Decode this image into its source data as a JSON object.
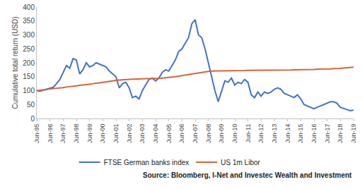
{
  "chart_data": {
    "type": "line",
    "y_label": "Cumulative total return (USD)",
    "annotations": [
      "Source: Bloomberg, I-Net and Investec Wealth and Investment"
    ],
    "categories": [
      "Jun-95",
      null,
      null,
      null,
      "Jun-96",
      null,
      null,
      null,
      "Jun-97",
      null,
      null,
      null,
      "Jun-98",
      null,
      null,
      null,
      "Jun-99",
      null,
      null,
      null,
      "Jun-00",
      null,
      null,
      null,
      "Jun-01",
      null,
      null,
      null,
      "Jun-02",
      null,
      null,
      null,
      "Jun-03",
      null,
      null,
      null,
      "Jun-04",
      null,
      null,
      null,
      "Jun-05",
      null,
      null,
      null,
      "Jun-06",
      null,
      null,
      null,
      "Jun-07",
      null,
      null,
      null,
      "Jun-08",
      null,
      null,
      null,
      "Jun-09",
      null,
      null,
      null,
      "Jun-10",
      null,
      null,
      null,
      "Jun-11",
      null,
      null,
      null,
      "Jun-12",
      null,
      null,
      null,
      "Jun-13",
      null,
      null,
      null,
      "Jun-14",
      null,
      null,
      null,
      "Jun-15",
      null,
      null,
      null,
      "Jun-16",
      null,
      null,
      null,
      "Jun-17",
      null,
      null,
      null,
      "Jun-18",
      null,
      null,
      null,
      "Jun-19"
    ],
    "series": [
      {
        "name": "FTSE German banks index",
        "color": "#4472c4",
        "values": [
          100,
          98,
          102,
          105,
          108,
          112,
          125,
          140,
          165,
          190,
          180,
          215,
          210,
          160,
          175,
          200,
          185,
          190,
          200,
          195,
          190,
          185,
          170,
          160,
          150,
          110,
          125,
          130,
          110,
          75,
          80,
          70,
          100,
          120,
          140,
          145,
          135,
          145,
          165,
          175,
          170,
          190,
          210,
          240,
          250,
          270,
          290,
          340,
          355,
          300,
          290,
          250,
          200,
          150,
          100,
          60,
          100,
          135,
          130,
          145,
          120,
          130,
          125,
          140,
          130,
          85,
          75,
          95,
          80,
          95,
          90,
          95,
          105,
          110,
          105,
          90,
          85,
          80,
          75,
          85,
          70,
          50,
          45,
          38,
          35,
          40,
          45,
          50,
          55,
          60,
          60,
          55,
          40,
          35,
          32,
          28,
          30
        ]
      },
      {
        "name": "US 1m Libor",
        "color": "#d4633a",
        "values": [
          100,
          101,
          103,
          104,
          106,
          107,
          108,
          110,
          111,
          113,
          114,
          116,
          117,
          119,
          120,
          122,
          123,
          125,
          126,
          128,
          130,
          132,
          134,
          136,
          137,
          138,
          139,
          140,
          140,
          141,
          141,
          142,
          142,
          143,
          143,
          143,
          144,
          144,
          145,
          146,
          147,
          149,
          150,
          152,
          154,
          156,
          158,
          160,
          162,
          164,
          166,
          168,
          169,
          170,
          171,
          171,
          171,
          171,
          172,
          172,
          172,
          172,
          172,
          172,
          173,
          173,
          173,
          173,
          173,
          173,
          174,
          174,
          174,
          174,
          174,
          174,
          174,
          174,
          175,
          175,
          175,
          175,
          175,
          176,
          176,
          177,
          177,
          177,
          178,
          178,
          179,
          179,
          180,
          181,
          182,
          183,
          184
        ]
      }
    ],
    "ylim": [
      0,
      400
    ],
    "yticks": [
      0,
      50,
      100,
      150,
      200,
      250,
      300,
      350,
      400
    ],
    "grid": false,
    "legend": "bottom"
  }
}
